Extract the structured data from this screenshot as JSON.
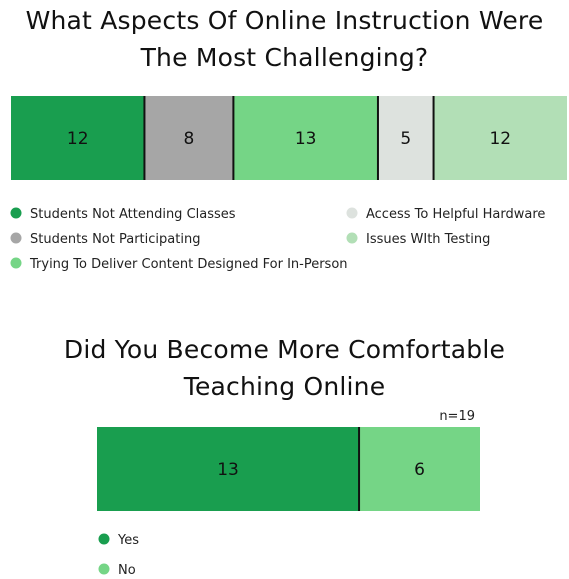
{
  "chart_data": [
    {
      "type": "stacked-bar-100",
      "title_lines": [
        "What Aspects Of Online Instruction Were",
        "The Most Challenging?"
      ],
      "series": [
        {
          "name": "Students Not Attending Classes",
          "value": 12,
          "color": "#199e4f"
        },
        {
          "name": "Students Not Participating",
          "value": 8,
          "color": "#a6a6a6"
        },
        {
          "name": "Trying To Deliver Content Designed For In-Person",
          "value": 13,
          "color": "#75d586"
        },
        {
          "name": "Access To Helpful Hardware",
          "value": 5,
          "color": "#dde2de"
        },
        {
          "name": "Issues WIth Testing",
          "value": 12,
          "color": "#b2dfb6"
        }
      ],
      "legend_placement": "bottom",
      "note": ""
    },
    {
      "type": "stacked-bar-100",
      "title_lines": [
        "Did You Become More Comfortable",
        "Teaching Online"
      ],
      "series": [
        {
          "name": "Yes",
          "value": 13,
          "color": "#199e4f"
        },
        {
          "name": "No",
          "value": 6,
          "color": "#75d586"
        }
      ],
      "legend_placement": "bottom",
      "note": "n=19"
    }
  ]
}
